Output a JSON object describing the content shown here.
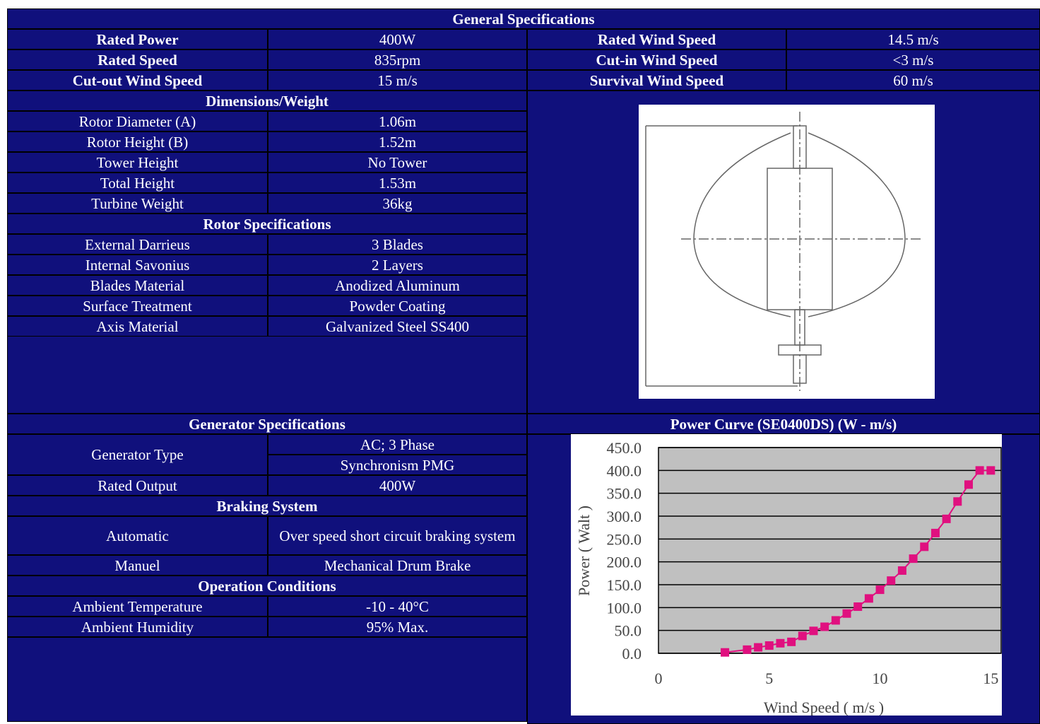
{
  "general": {
    "title": "General Specifications",
    "rows": [
      [
        "Rated Power",
        "400W",
        "Rated Wind Speed",
        "14.5 m/s"
      ],
      [
        "Rated Speed",
        "835rpm",
        "Cut-in Wind Speed",
        "<3 m/s"
      ],
      [
        "Cut-out Wind Speed",
        "15 m/s",
        "Survival Wind Speed",
        "60 m/s"
      ]
    ]
  },
  "dimensions": {
    "title": "Dimensions/Weight",
    "rows": [
      [
        "Rotor Diameter (A)",
        "1.06m"
      ],
      [
        "Rotor Height (B)",
        "1.52m"
      ],
      [
        "Tower Height",
        "No Tower"
      ],
      [
        "Total Height",
        "1.53m"
      ],
      [
        "Turbine Weight",
        "36kg"
      ]
    ]
  },
  "rotor": {
    "title": "Rotor Specifications",
    "rows": [
      [
        "External Darrieus",
        "3 Blades"
      ],
      [
        "Internal Savonius",
        "2 Layers"
      ],
      [
        "Blades Material",
        "Anodized Aluminum"
      ],
      [
        "Surface Treatment",
        "Powder Coating"
      ],
      [
        "Axis Material",
        "Galvanized Steel SS400"
      ]
    ]
  },
  "generator": {
    "title": "Generator Specifications",
    "type": {
      "label": "Generator Type",
      "values": [
        "AC; 3 Phase",
        "Synchronism PMG"
      ]
    },
    "output": [
      "Rated Output",
      "400W"
    ]
  },
  "braking": {
    "title": "Braking System",
    "rows": [
      [
        "Automatic",
        "Over speed short circuit braking system"
      ],
      [
        "Manuel",
        "Mechanical Drum Brake"
      ]
    ]
  },
  "operation": {
    "title": "Operation Conditions",
    "rows": [
      [
        "Ambient Temperature",
        "-10 - 40°C"
      ],
      [
        "Ambient Humidity",
        "95% Max."
      ]
    ]
  },
  "chart_data": {
    "type": "line",
    "title": "Power Curve (SE0400DS) (W - m/s)",
    "x_label": "Wind Speed ( m/s )",
    "y_label": "Power ( Walt )",
    "x": [
      3,
      4,
      4.5,
      5,
      5.5,
      6,
      6.5,
      7,
      7.5,
      8,
      8.5,
      9,
      9.5,
      10,
      10.5,
      11,
      11.5,
      12,
      12.5,
      13,
      13.5,
      14,
      14.5,
      15
    ],
    "series": [
      {
        "name": "Power",
        "color": "#e0107f",
        "values": [
          2,
          8,
          13,
          17,
          22,
          25,
          38,
          49,
          58,
          72,
          87,
          102,
          120,
          139,
          159,
          181,
          207,
          233,
          263,
          294,
          332,
          369,
          400,
          400
        ]
      }
    ],
    "xlim": [
      0,
      15.5
    ],
    "xticks": [
      0,
      5,
      10,
      15
    ],
    "ylim": [
      0,
      450
    ],
    "yticks": [
      {
        "value": 0,
        "label": "0.0"
      },
      {
        "value": 50,
        "label": "50.0"
      },
      {
        "value": 100,
        "label": "100.0"
      },
      {
        "value": 150,
        "label": "150.0"
      },
      {
        "value": 200,
        "label": "200.0"
      },
      {
        "value": 250,
        "label": "250.0"
      },
      {
        "value": 300,
        "label": "300.0"
      },
      {
        "value": 350,
        "label": "350.0"
      },
      {
        "value": 400,
        "label": "400.0"
      },
      {
        "value": 450,
        "label": "450.0"
      }
    ],
    "grid": true
  }
}
